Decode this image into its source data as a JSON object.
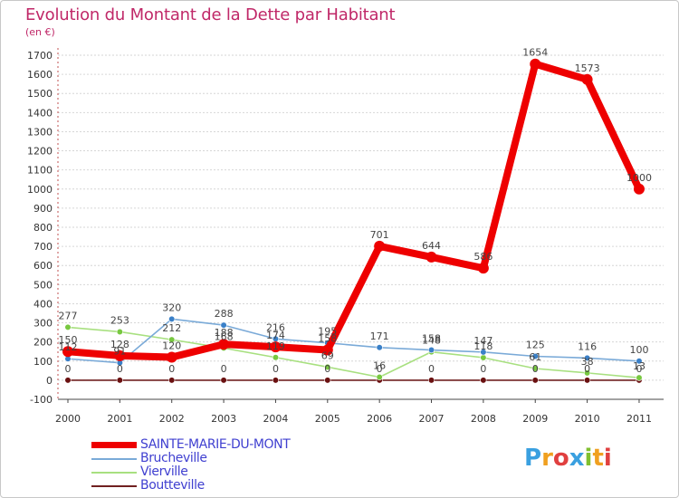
{
  "title": "Evolution du Montant de la Dette par Habitant",
  "subtitle": "(en €)",
  "brand": {
    "letters": [
      {
        "ch": "P",
        "color": "#3aa0e0"
      },
      {
        "ch": "r",
        "color": "#f0a020"
      },
      {
        "ch": "o",
        "color": "#e04040"
      },
      {
        "ch": "x",
        "color": "#3aa0e0"
      },
      {
        "ch": "i",
        "color": "#80c030"
      },
      {
        "ch": "t",
        "color": "#f0a020"
      },
      {
        "ch": "i",
        "color": "#e04040"
      }
    ]
  },
  "chart_data": {
    "type": "line",
    "x": [
      "2000",
      "2001",
      "2002",
      "2003",
      "2004",
      "2005",
      "2006",
      "2007",
      "2008",
      "2009",
      "2010",
      "2011"
    ],
    "ylim": [
      -100,
      1700
    ],
    "yticks": [
      -100,
      0,
      100,
      200,
      300,
      400,
      500,
      600,
      700,
      800,
      900,
      1000,
      1100,
      1200,
      1300,
      1400,
      1500,
      1600,
      1700
    ],
    "grid": "horizontal",
    "legend_position": "bottom-left",
    "series": [
      {
        "name": "Boutteville",
        "color": "#702020",
        "marker": "#6a1010",
        "values": [
          0,
          0,
          0,
          0,
          0,
          0,
          0,
          0,
          0,
          0,
          0,
          0
        ],
        "labels": [
          "0",
          "0",
          "0",
          "0",
          "0",
          "0",
          "0",
          "0",
          "0",
          "0",
          "0",
          "0"
        ]
      },
      {
        "name": "Vierville",
        "color": "#a8e080",
        "marker": "#78c840",
        "values": [
          277,
          253,
          212,
          168,
          119,
          69,
          16,
          148,
          118,
          61,
          38,
          13
        ],
        "labels": [
          "277",
          "253",
          "212",
          "168",
          "119",
          "69",
          "16",
          "148",
          "118",
          "61",
          "38",
          "13"
        ]
      },
      {
        "name": "Brucheville",
        "color": "#7aaad8",
        "marker": "#3a80c8",
        "values": [
          112,
          91,
          320,
          288,
          216,
          195,
          171,
          158,
          147,
          125,
          116,
          100
        ],
        "labels": [
          "112",
          "91",
          "320",
          "288",
          "216",
          "195",
          "171",
          "158",
          "147",
          "125",
          "116",
          "100"
        ]
      },
      {
        "name": "SAINTE-MARIE-DU-MONT",
        "color": "#ee0000",
        "marker": "#ee0000",
        "values": [
          150,
          128,
          120,
          188,
          174,
          158,
          701,
          644,
          586,
          1654,
          1573,
          1000
        ],
        "labels": [
          "150",
          "128",
          "120",
          "188",
          "174",
          "158",
          "701",
          "644",
          "586",
          "1654",
          "1573",
          "1000"
        ]
      }
    ]
  },
  "legend": [
    {
      "name": "SAINTE-MARIE-DU-MONT",
      "color": "#ee0000"
    },
    {
      "name": "Brucheville",
      "color": "#7aaad8"
    },
    {
      "name": "Vierville",
      "color": "#a8e080"
    },
    {
      "name": "Boutteville",
      "color": "#702020"
    }
  ]
}
